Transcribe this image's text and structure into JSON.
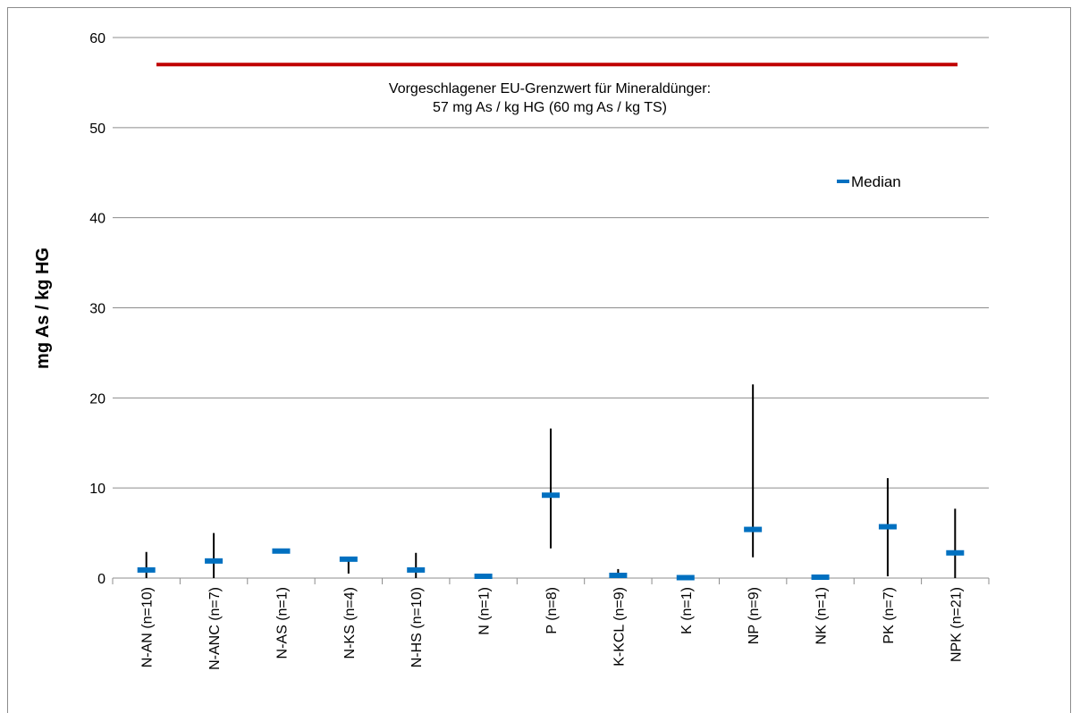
{
  "chart_data": {
    "type": "scatter",
    "title": "",
    "xlabel": "",
    "ylabel": "mg As / kg HG",
    "ylim": [
      0,
      60
    ],
    "yticks": [
      "0",
      "10",
      "20",
      "30",
      "40",
      "50",
      "60"
    ],
    "grid": true,
    "legend_position": "top-right",
    "categories": [
      "N-AN (n=10)",
      "N-ANC (n=7)",
      "N-AS (n=1)",
      "N-KS (n=4)",
      "N-HS (n=10)",
      "N (n=1)",
      "P (n=8)",
      "K-KCL (n=9)",
      "K (n=1)",
      "NP (n=9)",
      "NK (n=1)",
      "PK (n=7)",
      "NPK (n=21)"
    ],
    "series": [
      {
        "name": "Median",
        "marker": "dash",
        "color": "#0070C0",
        "values": [
          0.9,
          1.9,
          3.0,
          2.1,
          0.9,
          0.2,
          9.2,
          0.3,
          0.05,
          5.4,
          0.1,
          5.7,
          2.8
        ]
      }
    ],
    "ranges": {
      "min": [
        0,
        0,
        3.0,
        0.5,
        0,
        0.2,
        3.3,
        0,
        0.05,
        2.3,
        0.1,
        0.2,
        0
      ],
      "max": [
        2.9,
        5.0,
        3.0,
        2.3,
        2.8,
        0.2,
        16.6,
        1.0,
        0.05,
        21.5,
        0.1,
        11.1,
        7.7
      ],
      "color": "#000000"
    },
    "reference_line": {
      "value": 57,
      "color": "#C00000",
      "label_line1": "Vorgeschlagener EU-Grenzwert für Mineraldünger:",
      "label_line2": "57 mg As / kg HG (60 mg As / kg TS)"
    },
    "gridline_color": "#8c8c8c"
  }
}
